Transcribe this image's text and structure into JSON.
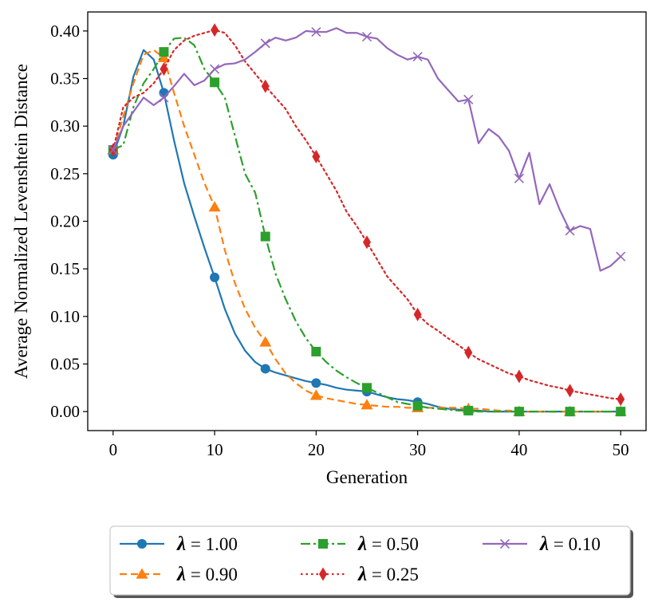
{
  "chart_data": {
    "type": "line",
    "title": "",
    "xlabel": "Generation",
    "ylabel": "Average Normalized Levenshtein Distance",
    "xlim": [
      -2.5,
      52.5
    ],
    "ylim": [
      -0.02,
      0.42
    ],
    "xticks": [
      0,
      10,
      20,
      30,
      40,
      50
    ],
    "xtick_labels": [
      "0",
      "10",
      "20",
      "30",
      "40",
      "50"
    ],
    "yticks": [
      0.0,
      0.05,
      0.1,
      0.15,
      0.2,
      0.25,
      0.3,
      0.35,
      0.4
    ],
    "ytick_labels": [
      "0.00",
      "0.05",
      "0.10",
      "0.15",
      "0.20",
      "0.25",
      "0.30",
      "0.35",
      "0.40"
    ],
    "grid": false,
    "legend_position": "bottom-center, below plot, 3 columns",
    "series": [
      {
        "name": "λ = 1.00",
        "symbol": "λ",
        "value_text": " = 1.00",
        "color": "#1f77b4",
        "linestyle": "solid",
        "marker": "circle",
        "x": [
          0,
          1,
          2,
          3,
          4,
          5,
          6,
          7,
          8,
          9,
          10,
          11,
          12,
          13,
          14,
          15,
          16,
          17,
          18,
          19,
          20,
          21,
          22,
          23,
          24,
          25,
          26,
          27,
          28,
          29,
          30,
          31,
          32,
          33,
          34,
          35,
          36,
          37,
          38,
          39,
          40,
          41,
          42,
          43,
          44,
          45,
          46,
          47,
          48,
          49,
          50
        ],
        "values": [
          0.27,
          0.3,
          0.352,
          0.38,
          0.37,
          0.335,
          0.285,
          0.24,
          0.205,
          0.172,
          0.141,
          0.108,
          0.082,
          0.064,
          0.052,
          0.045,
          0.041,
          0.038,
          0.035,
          0.032,
          0.03,
          0.028,
          0.025,
          0.023,
          0.022,
          0.021,
          0.018,
          0.015,
          0.013,
          0.012,
          0.01,
          0.008,
          0.005,
          0.003,
          0.002,
          0.001,
          0.001,
          0.0,
          0.0,
          0.0,
          0.0,
          0.0,
          0.0,
          0.0,
          0.0,
          0.0,
          0.0,
          0.0,
          0.0,
          0.0,
          0.0
        ],
        "marker_x": [
          0,
          5,
          10,
          15,
          20,
          25,
          30,
          35,
          40,
          45,
          50
        ]
      },
      {
        "name": "λ = 0.90",
        "symbol": "λ",
        "value_text": " = 0.90",
        "color": "#ff7f0e",
        "linestyle": "dashed",
        "marker": "triangle-up",
        "x": [
          0,
          1,
          2,
          3,
          4,
          5,
          6,
          7,
          8,
          9,
          10,
          11,
          12,
          13,
          14,
          15,
          16,
          17,
          18,
          19,
          20,
          21,
          22,
          23,
          24,
          25,
          26,
          27,
          28,
          29,
          30,
          31,
          32,
          33,
          34,
          35,
          36,
          37,
          38,
          39,
          40,
          41,
          42,
          43,
          44,
          45,
          46,
          47,
          48,
          49,
          50
        ],
        "values": [
          0.275,
          0.31,
          0.345,
          0.375,
          0.38,
          0.372,
          0.335,
          0.3,
          0.27,
          0.24,
          0.215,
          0.17,
          0.135,
          0.108,
          0.088,
          0.073,
          0.055,
          0.04,
          0.03,
          0.022,
          0.017,
          0.014,
          0.012,
          0.01,
          0.008,
          0.007,
          0.006,
          0.005,
          0.005,
          0.004,
          0.004,
          0.004,
          0.004,
          0.004,
          0.004,
          0.003,
          0.003,
          0.002,
          0.001,
          0.001,
          0.0,
          0.0,
          0.0,
          0.0,
          0.0,
          0.0,
          0.0,
          0.0,
          0.0,
          0.0,
          0.0
        ],
        "marker_x": [
          0,
          5,
          10,
          15,
          20,
          25,
          30,
          35,
          40,
          45,
          50
        ]
      },
      {
        "name": "λ = 0.50",
        "symbol": "λ",
        "value_text": " = 0.50",
        "color": "#2ca02c",
        "linestyle": "dashdot",
        "marker": "square",
        "x": [
          0,
          1,
          2,
          3,
          4,
          5,
          6,
          7,
          8,
          9,
          10,
          11,
          12,
          13,
          14,
          15,
          16,
          17,
          18,
          19,
          20,
          21,
          22,
          23,
          24,
          25,
          26,
          27,
          28,
          29,
          30,
          31,
          32,
          33,
          34,
          35,
          36,
          37,
          38,
          39,
          40,
          41,
          42,
          43,
          44,
          45,
          46,
          47,
          48,
          49,
          50
        ],
        "values": [
          0.275,
          0.28,
          0.32,
          0.345,
          0.36,
          0.378,
          0.392,
          0.393,
          0.385,
          0.36,
          0.346,
          0.33,
          0.29,
          0.25,
          0.23,
          0.184,
          0.145,
          0.118,
          0.095,
          0.077,
          0.063,
          0.052,
          0.043,
          0.036,
          0.03,
          0.025,
          0.02,
          0.015,
          0.01,
          0.008,
          0.006,
          0.004,
          0.003,
          0.002,
          0.001,
          0.001,
          0.0,
          0.0,
          0.0,
          0.0,
          0.0,
          0.0,
          0.0,
          0.0,
          0.0,
          0.0,
          0.0,
          0.0,
          0.0,
          0.0,
          0.0
        ],
        "marker_x": [
          0,
          5,
          10,
          15,
          20,
          25,
          30,
          35,
          40,
          45,
          50
        ]
      },
      {
        "name": "λ = 0.25",
        "symbol": "λ",
        "value_text": " = 0.25",
        "color": "#d62728",
        "linestyle": "dotted",
        "marker": "thin-diamond",
        "x": [
          0,
          1,
          2,
          3,
          4,
          5,
          6,
          7,
          8,
          9,
          10,
          11,
          12,
          13,
          14,
          15,
          16,
          17,
          18,
          19,
          20,
          21,
          22,
          23,
          24,
          25,
          26,
          27,
          28,
          29,
          30,
          31,
          32,
          33,
          34,
          35,
          36,
          37,
          38,
          39,
          40,
          41,
          42,
          43,
          44,
          45,
          46,
          47,
          48,
          49,
          50
        ],
        "values": [
          0.275,
          0.32,
          0.33,
          0.335,
          0.345,
          0.36,
          0.38,
          0.39,
          0.395,
          0.398,
          0.401,
          0.398,
          0.385,
          0.368,
          0.355,
          0.342,
          0.33,
          0.318,
          0.3,
          0.285,
          0.268,
          0.25,
          0.232,
          0.21,
          0.195,
          0.178,
          0.16,
          0.142,
          0.13,
          0.118,
          0.102,
          0.092,
          0.085,
          0.077,
          0.07,
          0.062,
          0.055,
          0.05,
          0.045,
          0.04,
          0.037,
          0.033,
          0.03,
          0.027,
          0.025,
          0.022,
          0.02,
          0.018,
          0.016,
          0.014,
          0.013
        ],
        "marker_x": [
          0,
          5,
          10,
          15,
          20,
          25,
          30,
          35,
          40,
          45,
          50
        ]
      },
      {
        "name": "λ = 0.10",
        "symbol": "λ",
        "value_text": " = 0.10",
        "color": "#9467bd",
        "linestyle": "solid",
        "marker": "x",
        "x": [
          0,
          1,
          2,
          3,
          4,
          5,
          6,
          7,
          8,
          9,
          10,
          11,
          12,
          13,
          14,
          15,
          16,
          17,
          18,
          19,
          20,
          21,
          22,
          23,
          24,
          25,
          26,
          27,
          28,
          29,
          30,
          31,
          32,
          33,
          34,
          35,
          36,
          37,
          38,
          39,
          40,
          41,
          42,
          43,
          44,
          45,
          46,
          47,
          48,
          49,
          50
        ],
        "values": [
          0.275,
          0.3,
          0.315,
          0.33,
          0.322,
          0.33,
          0.342,
          0.355,
          0.343,
          0.348,
          0.36,
          0.365,
          0.366,
          0.37,
          0.378,
          0.387,
          0.393,
          0.39,
          0.393,
          0.4,
          0.399,
          0.399,
          0.403,
          0.398,
          0.398,
          0.394,
          0.392,
          0.382,
          0.375,
          0.37,
          0.373,
          0.37,
          0.35,
          0.338,
          0.326,
          0.328,
          0.282,
          0.297,
          0.289,
          0.274,
          0.245,
          0.272,
          0.218,
          0.239,
          0.212,
          0.19,
          0.195,
          0.192,
          0.148,
          0.153,
          0.163
        ],
        "marker_x": [
          0,
          5,
          10,
          15,
          20,
          25,
          30,
          35,
          40,
          45,
          50
        ]
      }
    ]
  }
}
